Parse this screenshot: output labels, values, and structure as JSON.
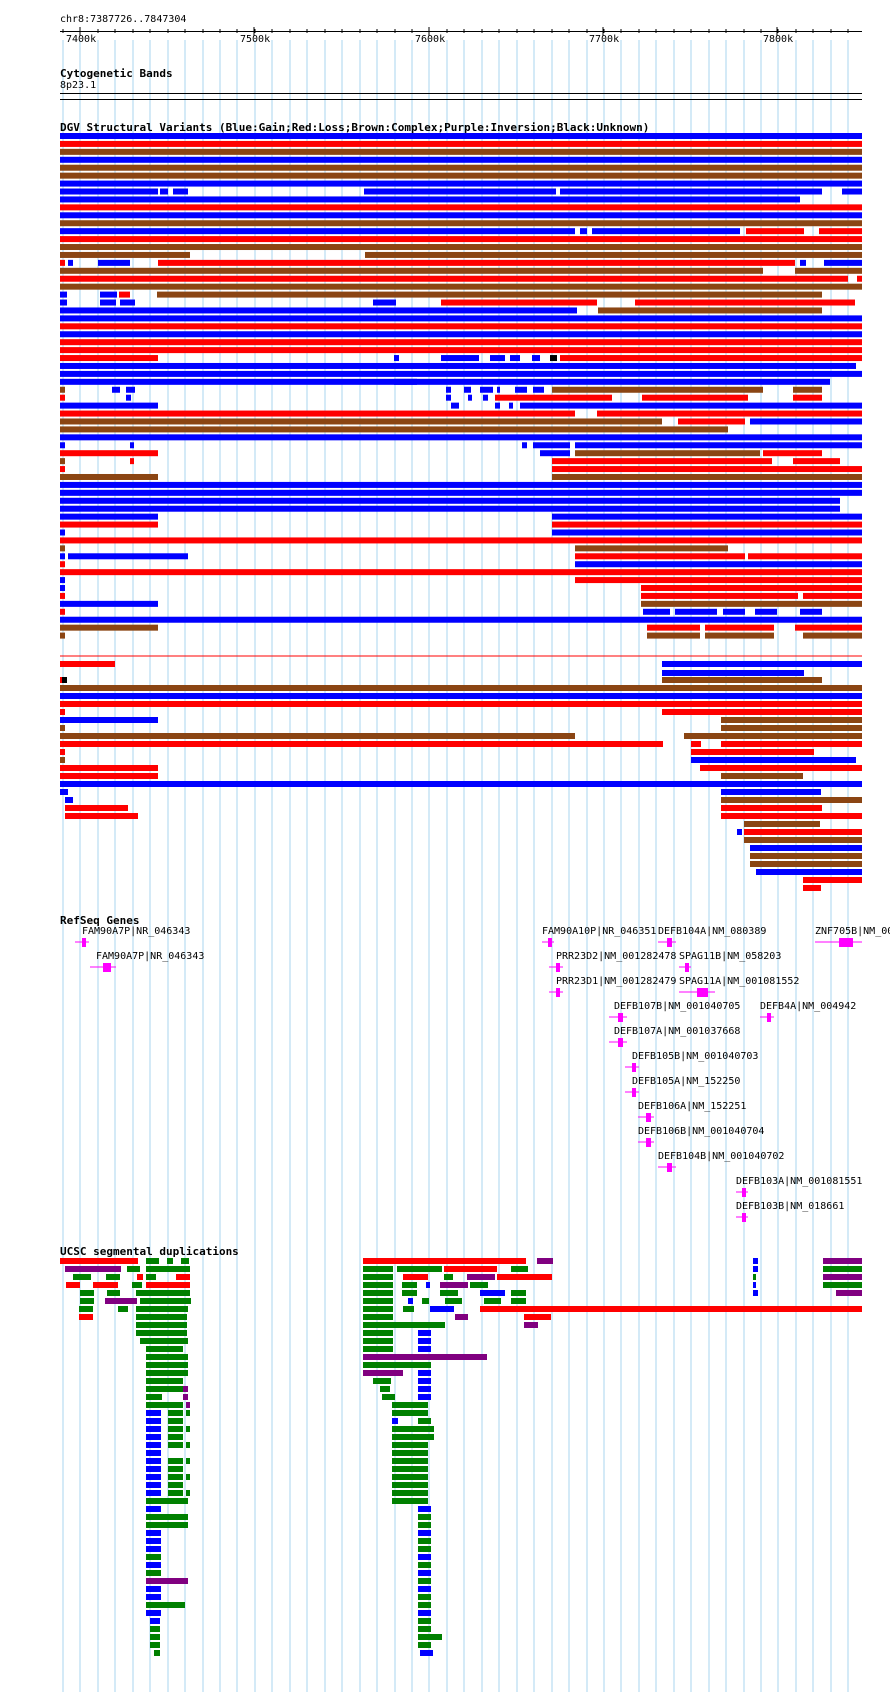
{
  "header": {
    "coordinates": "chr8:7387726..7847304"
  },
  "ruler": {
    "ticks": [
      "7400k",
      "7500k",
      "7600k",
      "7700k",
      "7800k"
    ]
  },
  "cyto": {
    "title": "Cytogenetic Bands",
    "band": "8p23.1"
  },
  "dgv": {
    "title": "DGV Structural Variants (Blue:Gain;Red:Loss;Brown:Complex;Purple:Inversion;Black:Unknown)"
  },
  "refseq": {
    "title": "RefSeq Genes",
    "genes": [
      "FAM90A7P|NR_046343",
      "FAM90A7P|NR_046343",
      "FAM90A10P|NR_046351",
      "DEFB104A|NM_080389",
      "ZNF705B|NM_00",
      "PRR23D2|NM_001282478",
      "SPAG11B|NM_058203",
      "PRR23D1|NM_001282479",
      "SPAG11A|NM_001081552",
      "DEFB107B|NM_001040705",
      "DEFB4A|NM_004942",
      "DEFB107A|NM_001037668",
      "DEFB105B|NM_001040703",
      "DEFB105A|NM_152250",
      "DEFB106A|NM_152251",
      "DEFB106B|NM_001040704",
      "DEFB104B|NM_001040702",
      "DEFB103A|NM_001081551",
      "DEFB103B|NM_018661"
    ]
  },
  "segdup": {
    "title": "UCSC segmental duplications"
  },
  "colors": {
    "gain": "#0000ff",
    "loss": "#ff0000",
    "complex": "#8b4513",
    "unknown": "#000000",
    "gene": "#ff00ff",
    "segdup_green": "#008000",
    "segdup_purple": "#800080",
    "segdup_blue": "#0000ff",
    "segdup_red": "#ff0000",
    "grid": "#a8d4ef"
  }
}
